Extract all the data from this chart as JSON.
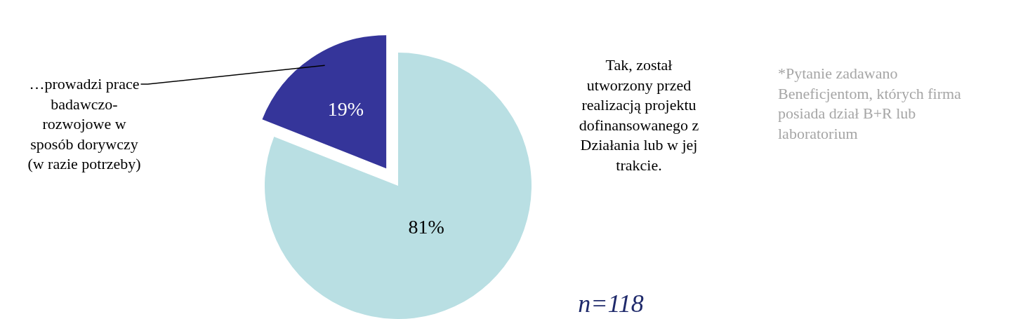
{
  "chart_data": {
    "type": "pie",
    "categories": [
      "Tak, został utworzony przed realizacją projektu dofinansowanego z Działania lub w jej trakcie.",
      "…prowadzi prace badawczo-rozwojowe w sposób dorywczy (w razie potrzeby)"
    ],
    "values": [
      81,
      19
    ],
    "colors": [
      "#b9dfe3",
      "#35359a"
    ],
    "value_labels": [
      "81%",
      "19%"
    ],
    "legend": false,
    "annotations": [
      "*Pytanie zadawano Beneficjentom, których firma posiada dział B+R lub laboratorium",
      "n=118"
    ]
  }
}
